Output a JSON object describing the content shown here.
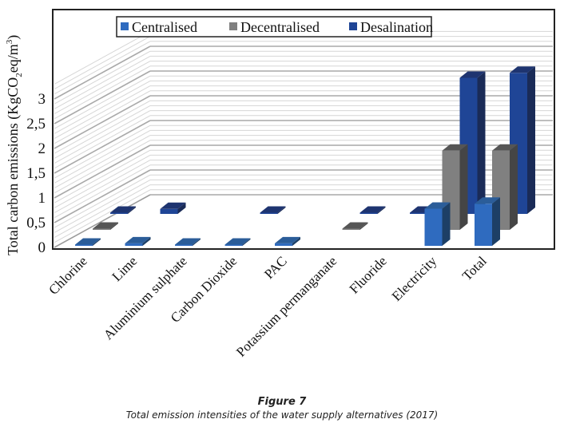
{
  "chart_data": {
    "type": "bar",
    "subtype": "3d-clustered-bar",
    "title": "",
    "xlabel": "",
    "ylabel": "Total carbon emissions (KgCO2eq/m3)",
    "ylabel_parts": {
      "main": "Total carbon emissions (KgCO",
      "sub": "2",
      "mid": "eq/m",
      "sup": "3",
      "end": ")"
    },
    "ylim": [
      0,
      3
    ],
    "yticks": [
      "0",
      "0,5",
      "1",
      "1,5",
      "2",
      "2,5",
      "3"
    ],
    "ytick_values": [
      0,
      0.5,
      1,
      1.5,
      2,
      2.5,
      3
    ],
    "grid": true,
    "legend_position": "top",
    "categories": [
      "Chlorine",
      "Lime",
      "Aluminium sulphate",
      "Carbon Dioxide",
      "PAC",
      "Potassium permanganate",
      "Fluoride",
      "Electricity",
      "Total"
    ],
    "series": [
      {
        "name": "Centralised",
        "color": "#2f6bbf",
        "values": [
          0.01,
          0.05,
          0.01,
          0.01,
          0.05,
          0,
          0,
          0.75,
          0.85
        ]
      },
      {
        "name": "Decentralised",
        "color": "#808080",
        "values": [
          0.01,
          0,
          0,
          0,
          0,
          0.01,
          0,
          1.6,
          1.6
        ]
      },
      {
        "name": "Desalination",
        "color": "#1f4596",
        "values": [
          0.01,
          0.1,
          0,
          0.01,
          0,
          0.01,
          0.01,
          2.75,
          2.85
        ]
      }
    ]
  },
  "caption": {
    "figure_label": "Figure 7",
    "text": "Total emission intensities of the water supply alternatives (2017)"
  }
}
